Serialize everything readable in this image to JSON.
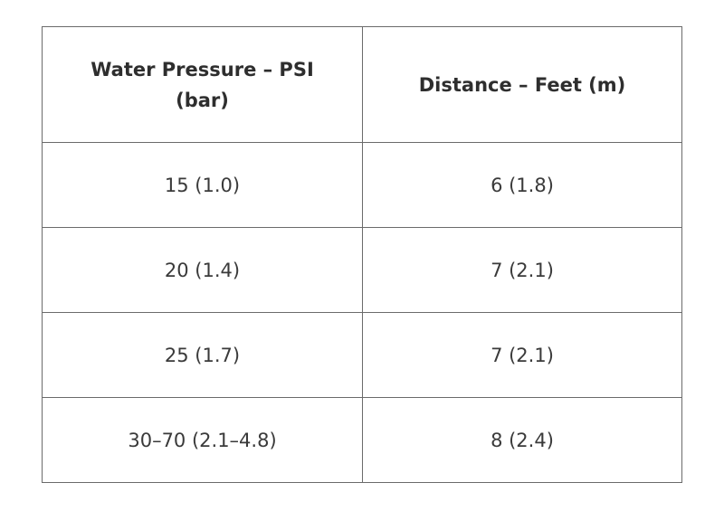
{
  "table": {
    "header": [
      "Water Pressure – PSI (bar)",
      "Distance – Feet (m)"
    ],
    "rows": [
      [
        "15 (1.0)",
        "6 (1.8)"
      ],
      [
        "20 (1.4)",
        "7 (2.1)"
      ],
      [
        "25 (1.7)",
        "7 (2.1)"
      ],
      [
        "30–70 (2.1–4.8)",
        "8 (2.4)"
      ]
    ]
  }
}
